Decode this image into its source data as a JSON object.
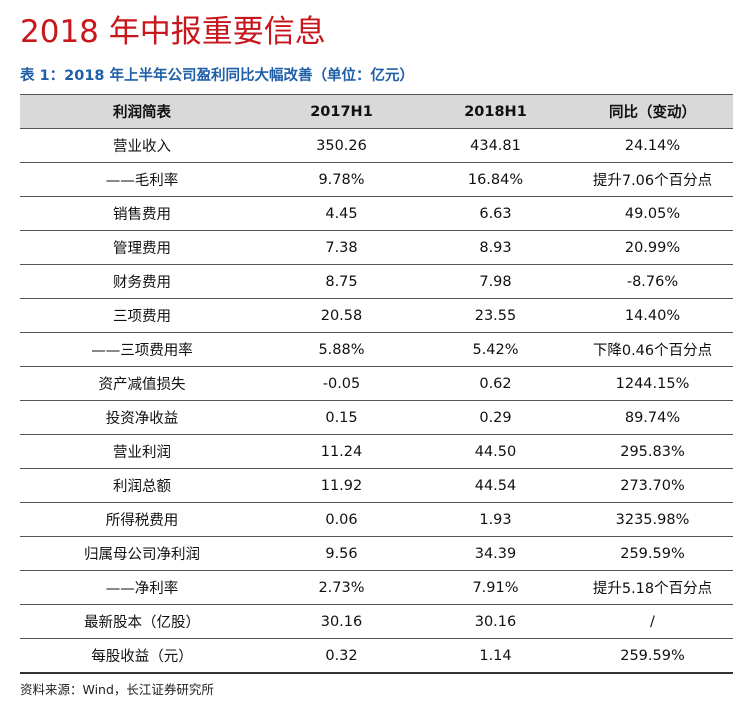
{
  "title": "2018 年中报重要信息",
  "caption": "表 1：2018 年上半年公司盈利同比大幅改善（单位：亿元）",
  "table": {
    "headers": [
      "利润简表",
      "2017H1",
      "2018H1",
      "同比（变动）"
    ],
    "rows": [
      [
        "营业收入",
        "350.26",
        "434.81",
        "24.14%"
      ],
      [
        "——毛利率",
        "9.78%",
        "16.84%",
        "提升7.06个百分点"
      ],
      [
        "销售费用",
        "4.45",
        "6.63",
        "49.05%"
      ],
      [
        "管理费用",
        "7.38",
        "8.93",
        "20.99%"
      ],
      [
        "财务费用",
        "8.75",
        "7.98",
        "-8.76%"
      ],
      [
        "三项费用",
        "20.58",
        "23.55",
        "14.40%"
      ],
      [
        "——三项费用率",
        "5.88%",
        "5.42%",
        "下降0.46个百分点"
      ],
      [
        "资产减值损失",
        "-0.05",
        "0.62",
        "1244.15%"
      ],
      [
        "投资净收益",
        "0.15",
        "0.29",
        "89.74%"
      ],
      [
        "营业利润",
        "11.24",
        "44.50",
        "295.83%"
      ],
      [
        "利润总额",
        "11.92",
        "44.54",
        "273.70%"
      ],
      [
        "所得税费用",
        "0.06",
        "1.93",
        "3235.98%"
      ],
      [
        "归属母公司净利润",
        "9.56",
        "34.39",
        "259.59%"
      ],
      [
        "——净利率",
        "2.73%",
        "7.91%",
        "提升5.18个百分点"
      ],
      [
        "最新股本（亿股）",
        "30.16",
        "30.16",
        "/"
      ],
      [
        "每股收益（元）",
        "0.32",
        "1.14",
        "259.59%"
      ]
    ]
  },
  "source": "资料来源：Wind，长江证券研究所",
  "colors": {
    "title": "#c8161d",
    "caption": "#1f5fa8",
    "header_bg": "#d9d9d9"
  }
}
